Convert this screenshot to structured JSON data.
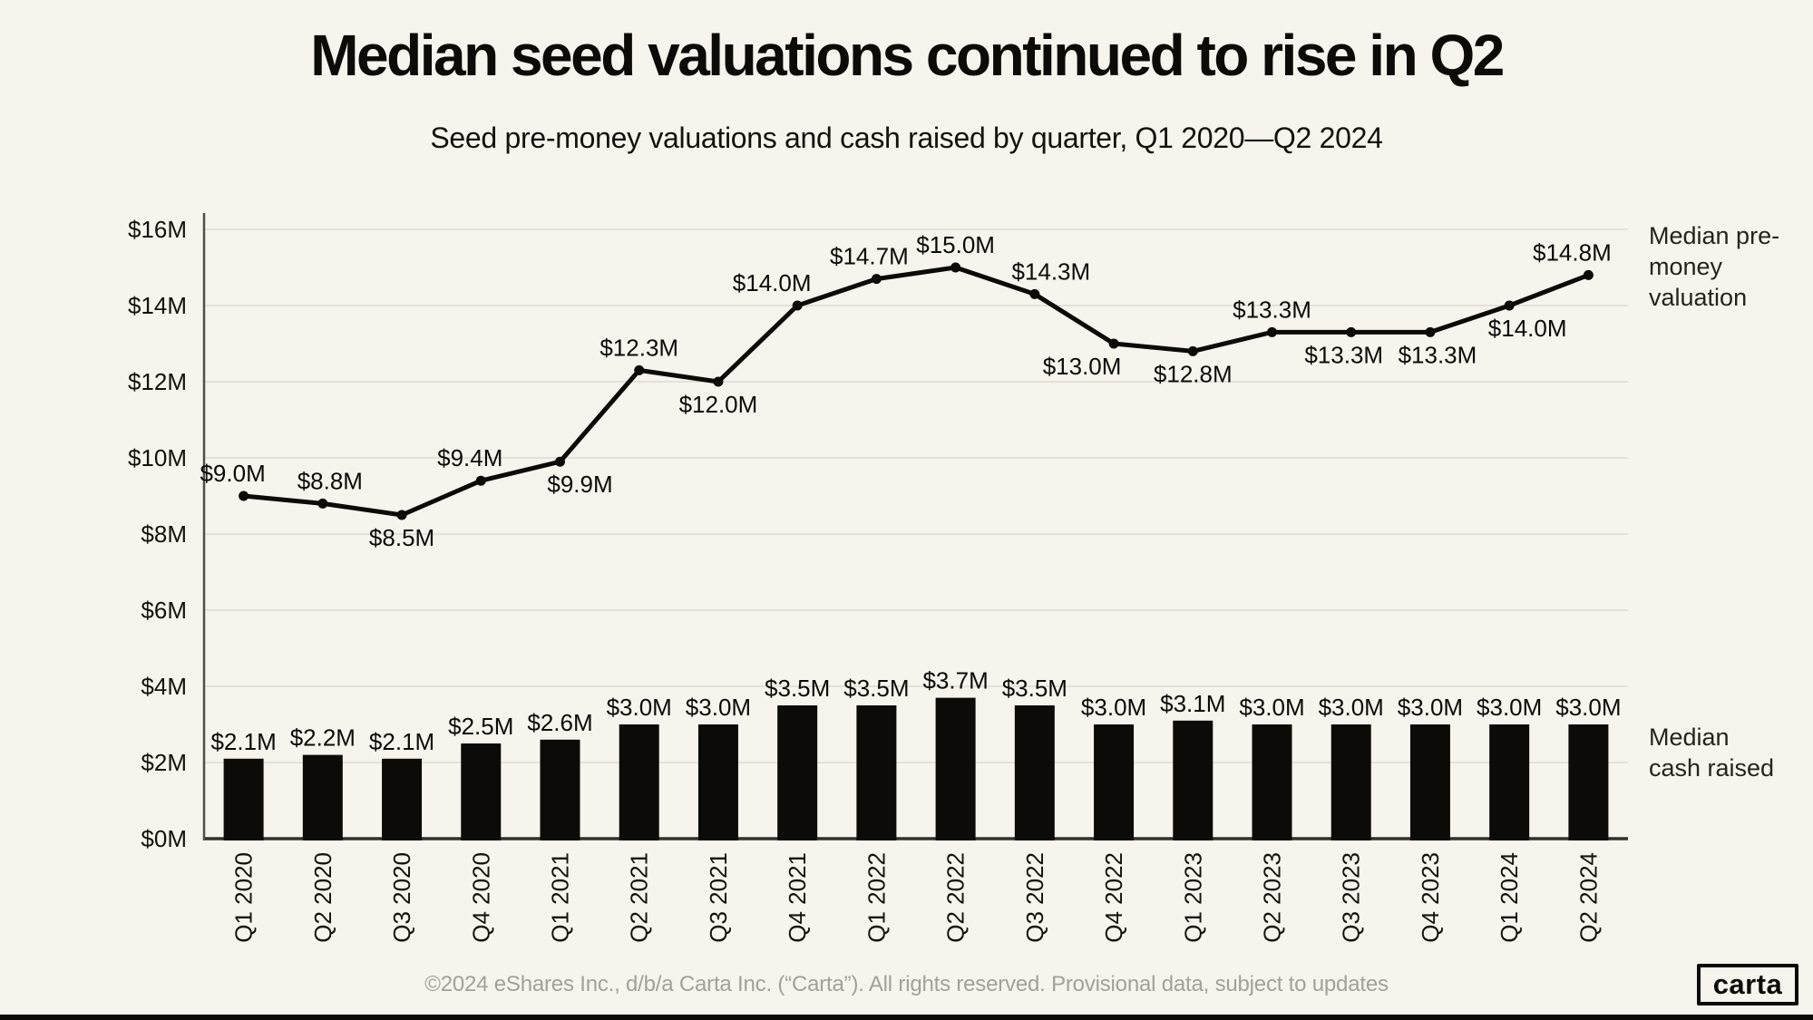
{
  "page": {
    "title": "Median seed valuations continued to rise in Q2",
    "subtitle": "Seed pre-money valuations and cash raised by quarter, Q1 2020—Q2 2024",
    "footer": "©2024 eShares Inc., d/b/a Carta Inc. (“Carta”). All rights reserved. Provisional data, subject to updates",
    "logo_text": "carta"
  },
  "annotations": {
    "line_label": "Median pre-money valuation",
    "bar_label": "Median cash raised"
  },
  "chart_data": {
    "type": "combo",
    "title": "Median seed valuations continued to rise in Q2",
    "subtitle": "Seed pre-money valuations and cash raised by quarter, Q1 2020—Q2 2024",
    "categories": [
      "Q1 2020",
      "Q2 2020",
      "Q3 2020",
      "Q4 2020",
      "Q1 2021",
      "Q2 2021",
      "Q3 2021",
      "Q4 2021",
      "Q1 2022",
      "Q2 2022",
      "Q3 2022",
      "Q4 2022",
      "Q1 2023",
      "Q2 2023",
      "Q3 2023",
      "Q4 2023",
      "Q1 2024",
      "Q2 2024"
    ],
    "series": [
      {
        "name": "Median pre-money valuation",
        "type": "line",
        "values": [
          9.0,
          8.8,
          8.5,
          9.4,
          9.9,
          12.3,
          12.0,
          14.0,
          14.7,
          15.0,
          14.3,
          13.0,
          12.8,
          13.3,
          13.3,
          13.3,
          14.0,
          14.8
        ],
        "labels": [
          "$9.0M",
          "$8.8M",
          "$8.5M",
          "$9.4M",
          "$9.9M",
          "$12.3M",
          "$12.0M",
          "$14.0M",
          "$14.7M",
          "$15.0M",
          "$14.3M",
          "$13.0M",
          "$12.8M",
          "$13.3M",
          "$13.3M",
          "$13.3M",
          "$14.0M",
          "$14.8M"
        ],
        "label_side": [
          "above",
          "above",
          "below",
          "above",
          "below",
          "above",
          "below",
          "above",
          "above",
          "above",
          "above",
          "below",
          "below",
          "above",
          "below",
          "below",
          "below",
          "above"
        ],
        "label_dx": [
          -12,
          8,
          0,
          -12,
          22,
          0,
          0,
          -28,
          -8,
          0,
          18,
          -35,
          0,
          0,
          -8,
          8,
          20,
          -18
        ]
      },
      {
        "name": "Median cash raised",
        "type": "bar",
        "values": [
          2.1,
          2.2,
          2.1,
          2.5,
          2.6,
          3.0,
          3.0,
          3.5,
          3.5,
          3.7,
          3.5,
          3.0,
          3.1,
          3.0,
          3.0,
          3.0,
          3.0,
          3.0
        ],
        "labels": [
          "$2.1M",
          "$2.2M",
          "$2.1M",
          "$2.5M",
          "$2.6M",
          "$3.0M",
          "$3.0M",
          "$3.5M",
          "$3.5M",
          "$3.7M",
          "$3.5M",
          "$3.0M",
          "$3.1M",
          "$3.0M",
          "$3.0M",
          "$3.0M",
          "$3.0M",
          "$3.0M"
        ]
      }
    ],
    "y_axis": {
      "min": 0,
      "max": 16,
      "step": 2,
      "ticks": [
        "$0M",
        "$2M",
        "$4M",
        "$6M",
        "$8M",
        "$10M",
        "$12M",
        "$14M",
        "$16M"
      ]
    },
    "grid": true,
    "legend_position": "right",
    "colors": {
      "background": "#F7F4EE",
      "ink": "#0D0B08",
      "grid": "#DFDAD2",
      "axis_line": "#514D47",
      "baseline": "#33302B",
      "footer_text": "#A5A096"
    }
  }
}
